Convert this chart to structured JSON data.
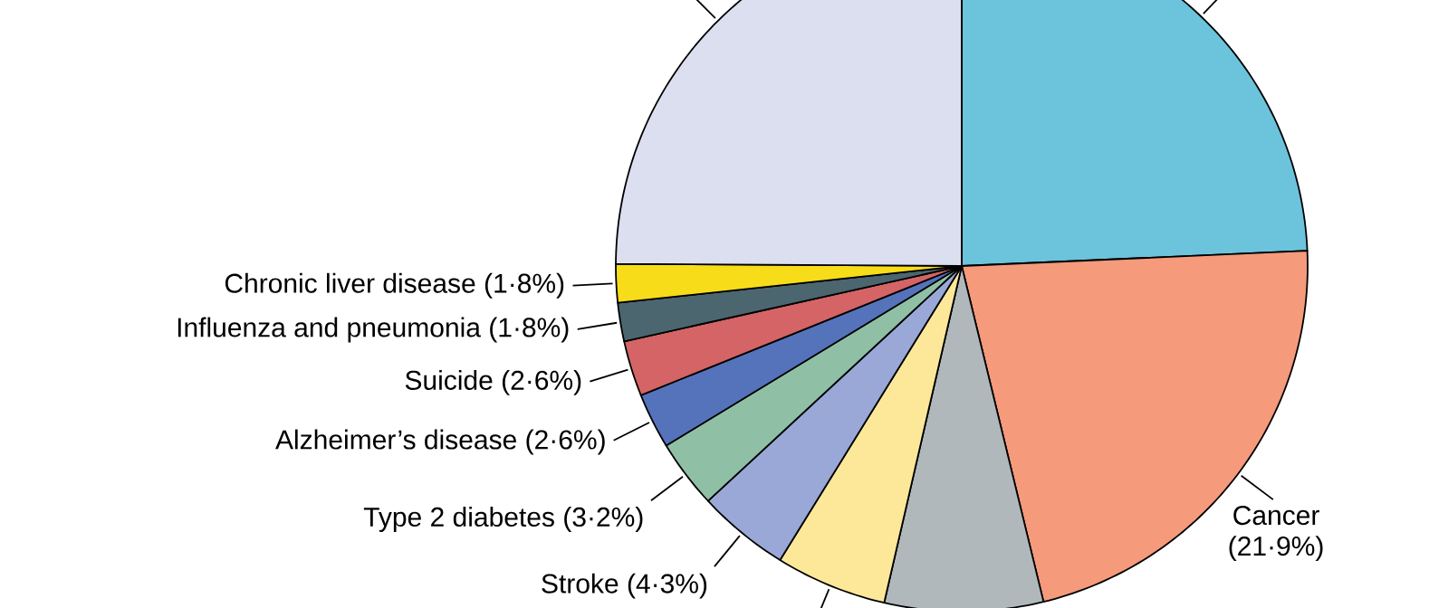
{
  "chart_data": {
    "type": "pie",
    "categories": [
      null,
      "Cancer (21·9%)",
      null,
      null,
      "Stroke (4·3%)",
      "Type 2 diabetes (3·2%)",
      "Alzheimer’s disease (2·6%)",
      "Suicide (2·6%)",
      "Influenza and pneumonia (1·8%)",
      "Chronic liver disease (1·8%)",
      null
    ],
    "values": [
      24.3,
      21.9,
      7.4,
      5.2,
      4.3,
      3.2,
      2.6,
      2.6,
      1.8,
      1.8,
      24.9
    ],
    "colors": [
      "#6cc3dc",
      "#f59a7b",
      "#b0b8bc",
      "#fde89a",
      "#9aa8d8",
      "#8fc0a6",
      "#5573bb",
      "#d46466",
      "#4c6670",
      "#f7dc1a",
      "#dcdff0"
    ]
  }
}
